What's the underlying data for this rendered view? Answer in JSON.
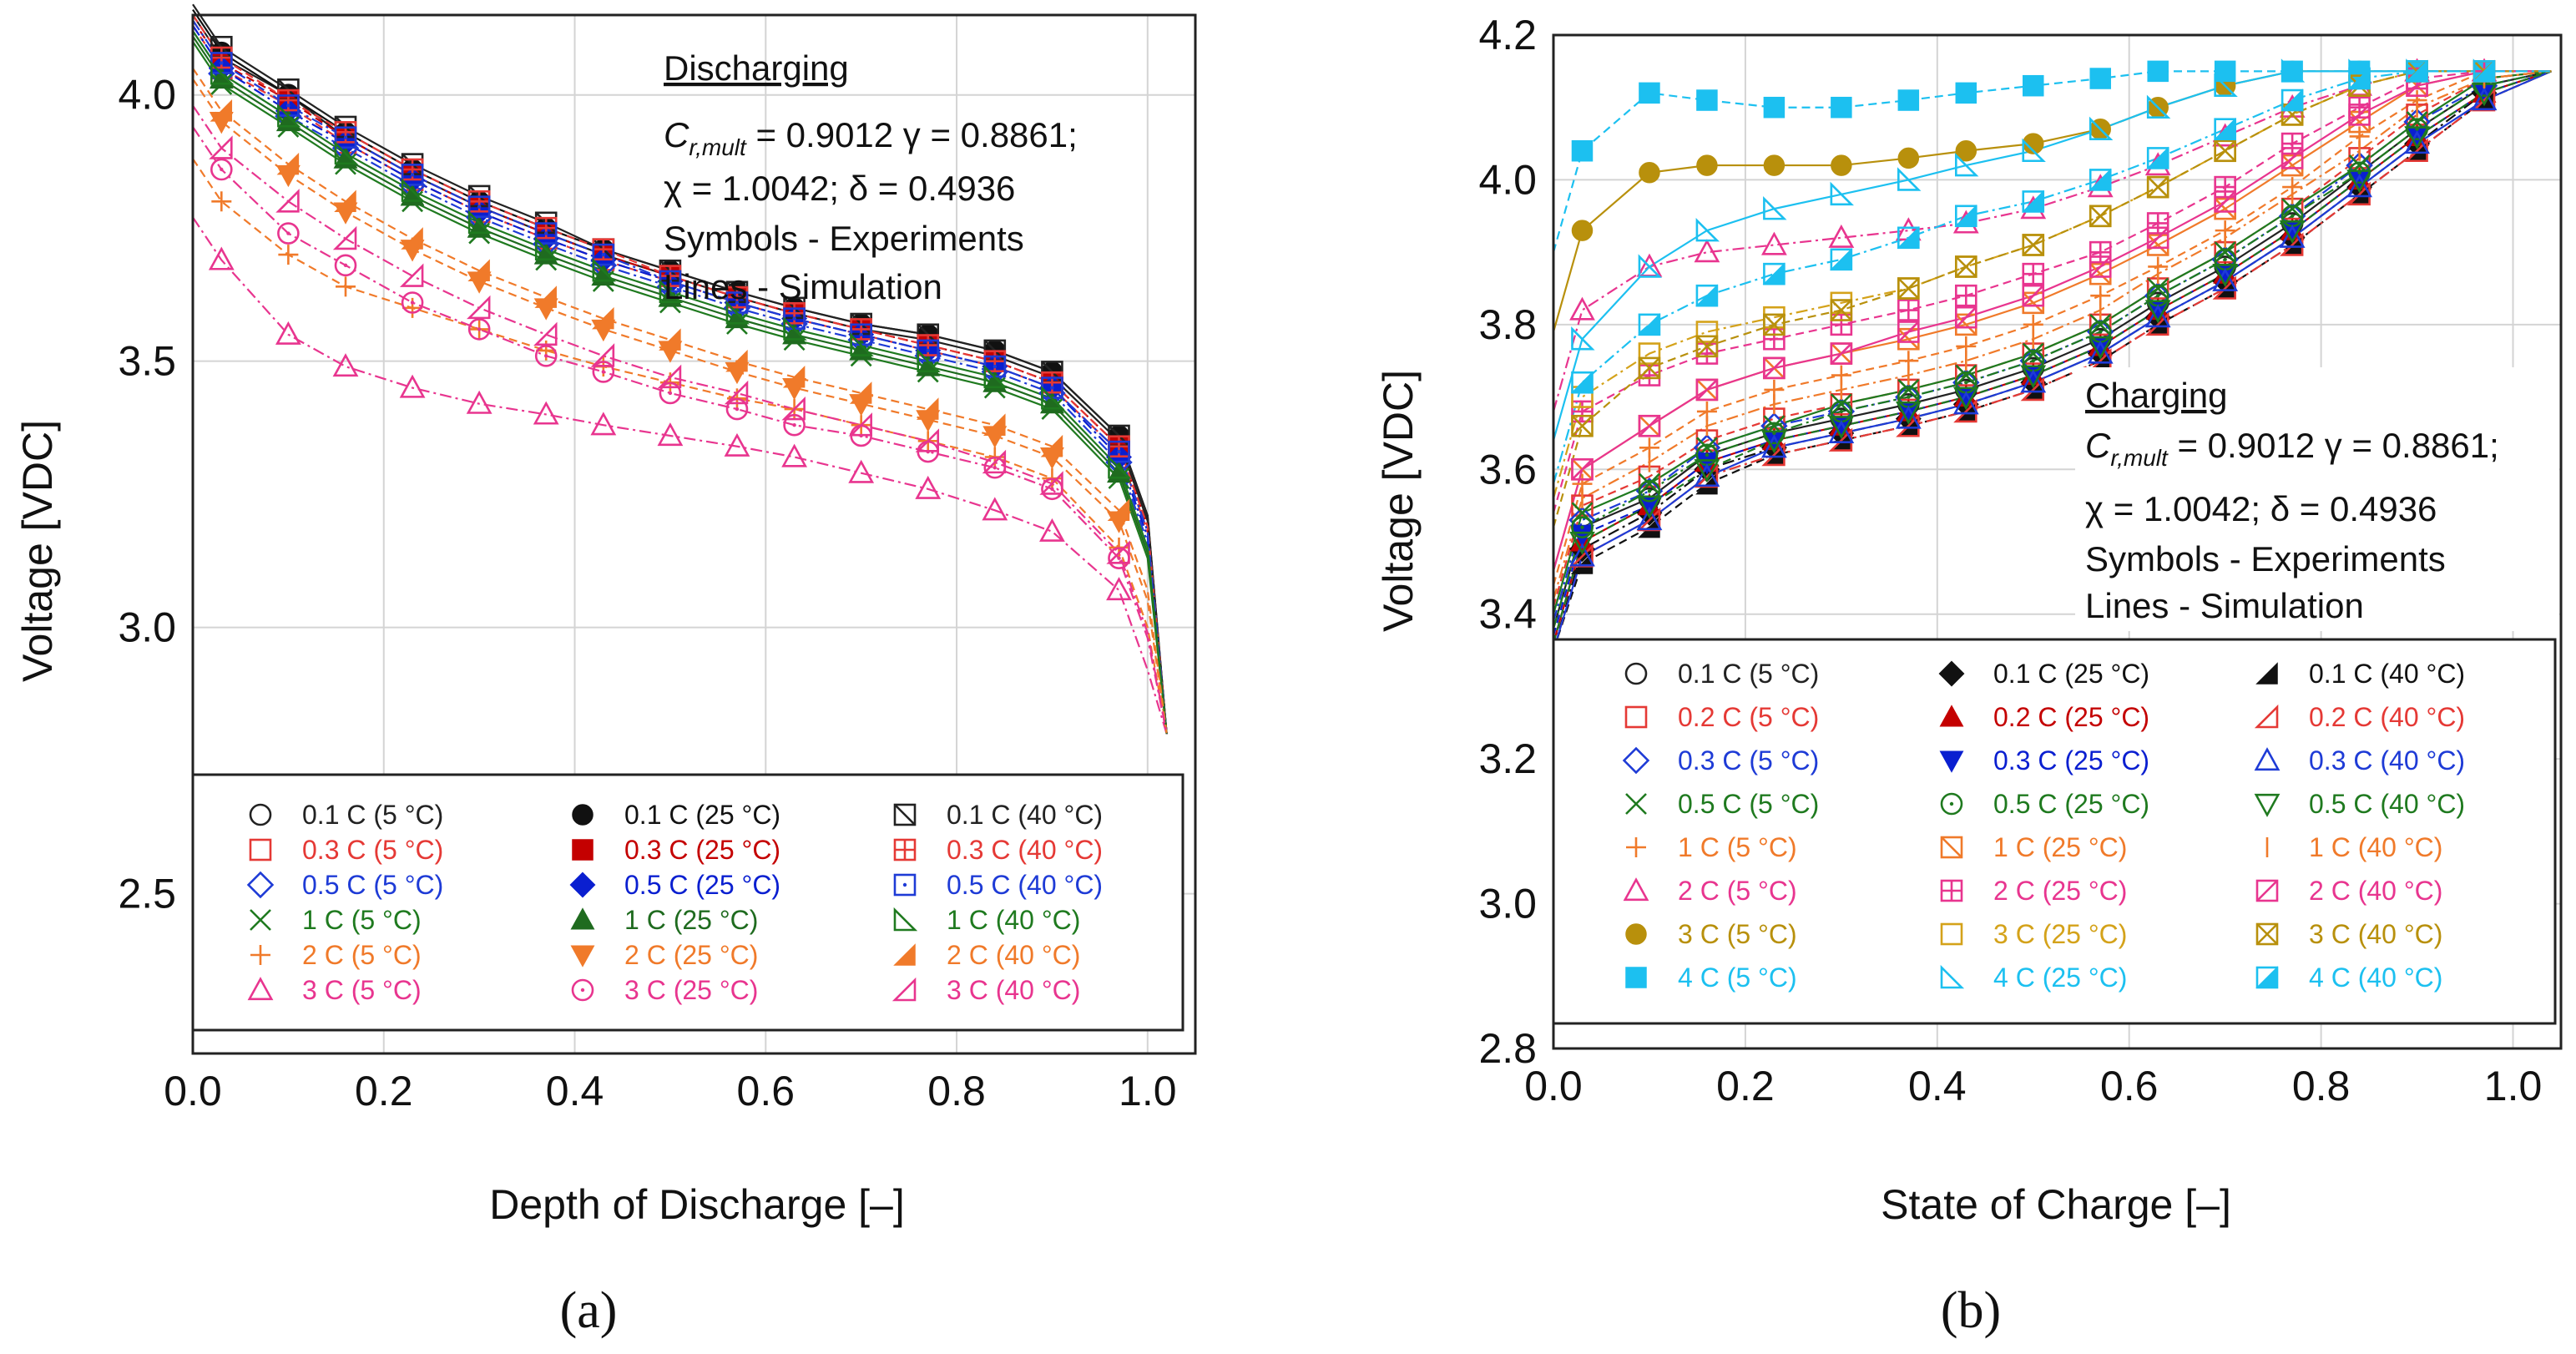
{
  "chart_data": [
    {
      "type": "scatter",
      "panel_label": "(a)",
      "xlabel": "Depth of Discharge [–]",
      "ylabel": "Voltage [VDC]",
      "xlim": [
        0,
        1.05
      ],
      "ylim": [
        2.2,
        4.15
      ],
      "xticks": [
        "0.0",
        "0.2",
        "0.4",
        "0.6",
        "0.8",
        "1.0"
      ],
      "yticks": [
        "2.5",
        "3.0",
        "3.5",
        "4.0"
      ],
      "grid": true,
      "annotation": {
        "title": "Discharging",
        "param_line1_sym": "C",
        "param_line1_sub": "r,mult",
        "param_line1_rest": " = 0.9012 γ = 0.8861;",
        "param_line2": "χ = 1.0042; δ = 0.4936",
        "line3": "Symbols - Experiments",
        "line4": "Lines - Simulation"
      },
      "x": [
        0.03,
        0.1,
        0.16,
        0.23,
        0.3,
        0.37,
        0.43,
        0.5,
        0.57,
        0.63,
        0.7,
        0.77,
        0.84,
        0.9,
        0.97
      ],
      "series": [
        {
          "name": "0.1 C (5 °C)",
          "color": "#222222",
          "marker": "circle-open",
          "values": [
            4.07,
            4.0,
            3.92,
            3.85,
            3.79,
            3.74,
            3.7,
            3.66,
            3.62,
            3.59,
            3.56,
            3.54,
            3.51,
            3.47,
            3.35
          ]
        },
        {
          "name": "0.3 C (5 °C)",
          "color": "#e53935",
          "marker": "square-open",
          "values": [
            4.05,
            3.98,
            3.91,
            3.84,
            3.78,
            3.73,
            3.69,
            3.65,
            3.61,
            3.58,
            3.55,
            3.52,
            3.49,
            3.45,
            3.33
          ]
        },
        {
          "name": "0.5 C (5 °C)",
          "color": "#1e3bd6",
          "marker": "diamond-open",
          "values": [
            4.04,
            3.96,
            3.9,
            3.83,
            3.77,
            3.72,
            3.68,
            3.64,
            3.6,
            3.57,
            3.54,
            3.51,
            3.48,
            3.44,
            3.31
          ]
        },
        {
          "name": "1 C (5 °C)",
          "color": "#1f7a1f",
          "marker": "x",
          "values": [
            4.02,
            3.94,
            3.87,
            3.8,
            3.74,
            3.69,
            3.65,
            3.61,
            3.57,
            3.54,
            3.51,
            3.48,
            3.45,
            3.41,
            3.28
          ]
        },
        {
          "name": "2 C (5 °C)",
          "color": "#f07a2a",
          "marker": "plus",
          "values": [
            3.8,
            3.7,
            3.64,
            3.6,
            3.56,
            3.52,
            3.49,
            3.46,
            3.43,
            3.41,
            3.38,
            3.35,
            3.32,
            3.28,
            3.15
          ]
        },
        {
          "name": "3 C (5 °C)",
          "color": "#e8358f",
          "marker": "triangle-open",
          "values": [
            3.69,
            3.55,
            3.49,
            3.45,
            3.42,
            3.4,
            3.38,
            3.36,
            3.34,
            3.32,
            3.29,
            3.26,
            3.22,
            3.18,
            3.07
          ]
        },
        {
          "name": "0.1 C (25 °C)",
          "color": "#111111",
          "marker": "circle-filled",
          "values": [
            4.08,
            4.0,
            3.93,
            3.86,
            3.8,
            3.75,
            3.71,
            3.67,
            3.63,
            3.6,
            3.57,
            3.55,
            3.52,
            3.48,
            3.36
          ]
        },
        {
          "name": "0.3 C (25 °C)",
          "color": "#c40000",
          "marker": "square-filled",
          "values": [
            4.06,
            3.99,
            3.92,
            3.85,
            3.79,
            3.74,
            3.7,
            3.66,
            3.62,
            3.59,
            3.56,
            3.53,
            3.5,
            3.46,
            3.34
          ]
        },
        {
          "name": "0.5 C (25 °C)",
          "color": "#0a1fd0",
          "marker": "diamond-filled",
          "values": [
            4.05,
            3.97,
            3.91,
            3.84,
            3.78,
            3.73,
            3.69,
            3.65,
            3.61,
            3.58,
            3.55,
            3.52,
            3.49,
            3.45,
            3.32
          ]
        },
        {
          "name": "1 C (25 °C)",
          "color": "#1f6b1f",
          "marker": "triangle-filled",
          "values": [
            4.03,
            3.95,
            3.88,
            3.81,
            3.75,
            3.7,
            3.66,
            3.62,
            3.58,
            3.55,
            3.52,
            3.49,
            3.46,
            3.42,
            3.29
          ]
        },
        {
          "name": "2 C (25 °C)",
          "color": "#f07a2a",
          "marker": "triangle-down-filled",
          "values": [
            3.95,
            3.85,
            3.78,
            3.71,
            3.65,
            3.6,
            3.56,
            3.52,
            3.48,
            3.45,
            3.42,
            3.39,
            3.36,
            3.32,
            3.2
          ]
        },
        {
          "name": "3 C (25 °C)",
          "color": "#e8358f",
          "marker": "circle-dot",
          "values": [
            3.86,
            3.74,
            3.68,
            3.61,
            3.56,
            3.51,
            3.48,
            3.44,
            3.41,
            3.38,
            3.36,
            3.33,
            3.3,
            3.26,
            3.13
          ]
        },
        {
          "name": "0.1 C (40 °C)",
          "color": "#222222",
          "marker": "square-diag",
          "values": [
            4.09,
            4.01,
            3.94,
            3.87,
            3.81,
            3.76,
            3.71,
            3.67,
            3.63,
            3.6,
            3.57,
            3.55,
            3.52,
            3.48,
            3.36
          ]
        },
        {
          "name": "0.3 C (40 °C)",
          "color": "#e53935",
          "marker": "square-cross",
          "values": [
            4.07,
            3.99,
            3.93,
            3.86,
            3.8,
            3.75,
            3.71,
            3.66,
            3.62,
            3.59,
            3.56,
            3.53,
            3.5,
            3.46,
            3.34
          ]
        },
        {
          "name": "0.5 C (40 °C)",
          "color": "#1e3bd6",
          "marker": "square-dot",
          "values": [
            4.06,
            3.98,
            3.92,
            3.85,
            3.79,
            3.74,
            3.7,
            3.65,
            3.61,
            3.58,
            3.55,
            3.52,
            3.49,
            3.45,
            3.33
          ]
        },
        {
          "name": "1 C (40 °C)",
          "color": "#1f7a1f",
          "marker": "rtri-open",
          "values": [
            4.04,
            3.96,
            3.89,
            3.82,
            3.76,
            3.71,
            3.67,
            3.63,
            3.59,
            3.56,
            3.53,
            3.5,
            3.47,
            3.43,
            3.3
          ]
        },
        {
          "name": "2 C (40 °C)",
          "color": "#f07a2a",
          "marker": "rtri-filled",
          "values": [
            3.97,
            3.87,
            3.8,
            3.73,
            3.67,
            3.62,
            3.58,
            3.54,
            3.5,
            3.47,
            3.44,
            3.41,
            3.38,
            3.34,
            3.22
          ]
        },
        {
          "name": "3 C (40 °C)",
          "color": "#e8358f",
          "marker": "ltri-open",
          "values": [
            3.9,
            3.8,
            3.73,
            3.66,
            3.6,
            3.55,
            3.51,
            3.47,
            3.44,
            3.41,
            3.38,
            3.35,
            3.31,
            3.27,
            3.14
          ]
        }
      ]
    },
    {
      "type": "scatter",
      "panel_label": "(b)",
      "xlabel": "State of Charge [–]",
      "ylabel": "Voltage [VDC]",
      "xlim": [
        0,
        1.05
      ],
      "ylim": [
        2.8,
        4.2
      ],
      "xticks": [
        "0.0",
        "0.2",
        "0.4",
        "0.6",
        "0.8",
        "1.0"
      ],
      "yticks": [
        "2.8",
        "3.0",
        "3.2",
        "3.4",
        "3.6",
        "3.8",
        "4.0",
        "4.2"
      ],
      "grid": true,
      "annotation": {
        "title": "Charging",
        "param_line1_sym": "C",
        "param_line1_sub": "r,mult",
        "param_line1_rest": " = 0.9012 γ = 0.8861;",
        "param_line2": "χ = 1.0042; δ = 0.4936",
        "line3": "Symbols - Experiments",
        "line4": "Lines - Simulation"
      },
      "x": [
        0.03,
        0.1,
        0.16,
        0.23,
        0.3,
        0.37,
        0.43,
        0.5,
        0.57,
        0.63,
        0.7,
        0.77,
        0.84,
        0.9,
        0.97
      ],
      "series": [
        {
          "name": "0.1 C (5 °C)",
          "color": "#222222",
          "marker": "circle-open",
          "values": [
            3.52,
            3.56,
            3.62,
            3.65,
            3.67,
            3.69,
            3.71,
            3.74,
            3.78,
            3.83,
            3.88,
            3.94,
            4.01,
            4.07,
            4.13
          ]
        },
        {
          "name": "0.2 C (5 °C)",
          "color": "#e53935",
          "marker": "square-open",
          "values": [
            3.55,
            3.59,
            3.64,
            3.67,
            3.69,
            3.71,
            3.73,
            3.76,
            3.8,
            3.85,
            3.9,
            3.96,
            4.03,
            4.09,
            4.14
          ]
        },
        {
          "name": "0.3 C (5 °C)",
          "color": "#1e3bd6",
          "marker": "diamond-open",
          "values": [
            3.53,
            3.57,
            3.63,
            3.66,
            3.68,
            3.7,
            3.72,
            3.75,
            3.79,
            3.84,
            3.89,
            3.95,
            4.02,
            4.08,
            4.13
          ]
        },
        {
          "name": "0.5 C (5 °C)",
          "color": "#1f7a1f",
          "marker": "x",
          "values": [
            3.54,
            3.58,
            3.63,
            3.66,
            3.69,
            3.71,
            3.73,
            3.76,
            3.8,
            3.85,
            3.9,
            3.96,
            4.02,
            4.08,
            4.14
          ]
        },
        {
          "name": "1 C (5 °C)",
          "color": "#f07a2a",
          "marker": "plus",
          "values": [
            3.58,
            3.63,
            3.68,
            3.71,
            3.73,
            3.75,
            3.77,
            3.8,
            3.84,
            3.88,
            3.93,
            3.99,
            4.06,
            4.11,
            4.15
          ]
        },
        {
          "name": "2 C (5 °C)",
          "color": "#e8358f",
          "marker": "triangle-open",
          "values": [
            3.82,
            3.88,
            3.9,
            3.91,
            3.92,
            3.93,
            3.94,
            3.96,
            3.99,
            4.02,
            4.06,
            4.1,
            4.13,
            4.15,
            4.15
          ]
        },
        {
          "name": "3 C (5 °C)",
          "color": "#b8900c",
          "marker": "circle-filled",
          "values": [
            3.93,
            4.01,
            4.02,
            4.02,
            4.02,
            4.03,
            4.04,
            4.05,
            4.07,
            4.1,
            4.13,
            4.15,
            4.15,
            4.15,
            4.15
          ]
        },
        {
          "name": "4 C (5 °C)",
          "color": "#1cc0f0",
          "marker": "square-filled",
          "values": [
            4.04,
            4.12,
            4.11,
            4.1,
            4.1,
            4.11,
            4.12,
            4.13,
            4.14,
            4.15,
            4.15,
            4.15,
            4.15,
            4.15,
            4.15
          ]
        },
        {
          "name": "0.1 C (25 °C)",
          "color": "#111111",
          "marker": "diamond-filled",
          "values": [
            3.49,
            3.54,
            3.6,
            3.63,
            3.65,
            3.67,
            3.69,
            3.72,
            3.76,
            3.81,
            3.86,
            3.92,
            3.99,
            4.05,
            4.12
          ]
        },
        {
          "name": "0.2 C (25 °C)",
          "color": "#c40000",
          "marker": "triangle-filled",
          "values": [
            3.5,
            3.55,
            3.61,
            3.64,
            3.66,
            3.68,
            3.7,
            3.73,
            3.77,
            3.82,
            3.87,
            3.93,
            4.0,
            4.06,
            4.12
          ]
        },
        {
          "name": "0.3 C (25 °C)",
          "color": "#0a1fd0",
          "marker": "triangle-down-filled",
          "values": [
            3.51,
            3.55,
            3.61,
            3.64,
            3.66,
            3.68,
            3.7,
            3.73,
            3.77,
            3.82,
            3.87,
            3.93,
            4.0,
            4.06,
            4.12
          ]
        },
        {
          "name": "0.5 C (25 °C)",
          "color": "#1f7a1f",
          "marker": "circle-dot",
          "values": [
            3.52,
            3.57,
            3.62,
            3.65,
            3.68,
            3.7,
            3.72,
            3.75,
            3.79,
            3.84,
            3.89,
            3.95,
            4.01,
            4.07,
            4.13
          ]
        },
        {
          "name": "1 C (25 °C)",
          "color": "#f07a2a",
          "marker": "square-diag",
          "values": [
            3.6,
            3.66,
            3.71,
            3.74,
            3.76,
            3.78,
            3.8,
            3.83,
            3.87,
            3.91,
            3.96,
            4.02,
            4.08,
            4.13,
            4.15
          ]
        },
        {
          "name": "2 C (25 °C)",
          "color": "#e8358f",
          "marker": "square-cross",
          "values": [
            3.68,
            3.73,
            3.76,
            3.78,
            3.8,
            3.82,
            3.84,
            3.87,
            3.9,
            3.94,
            3.99,
            4.05,
            4.1,
            4.14,
            4.15
          ]
        },
        {
          "name": "3 C (25 °C)",
          "color": "#d4a21a",
          "marker": "square-open",
          "values": [
            3.7,
            3.76,
            3.79,
            3.81,
            3.83,
            3.85,
            3.88,
            3.91,
            3.95,
            3.99,
            4.04,
            4.09,
            4.13,
            4.15,
            4.15
          ]
        },
        {
          "name": "4 C (25 °C)",
          "color": "#1cc0f0",
          "marker": "rtri-open",
          "values": [
            3.78,
            3.88,
            3.93,
            3.96,
            3.98,
            4.0,
            4.02,
            4.04,
            4.07,
            4.1,
            4.13,
            4.15,
            4.15,
            4.15,
            4.15
          ]
        },
        {
          "name": "0.1 C (40 °C)",
          "color": "#111111",
          "marker": "rtri-filled",
          "values": [
            3.47,
            3.52,
            3.58,
            3.62,
            3.64,
            3.66,
            3.68,
            3.71,
            3.75,
            3.8,
            3.85,
            3.91,
            3.98,
            4.04,
            4.11
          ]
        },
        {
          "name": "0.2 C (40 °C)",
          "color": "#e53935",
          "marker": "ltri-open",
          "values": [
            3.48,
            3.53,
            3.59,
            3.62,
            3.64,
            3.66,
            3.68,
            3.71,
            3.75,
            3.8,
            3.85,
            3.91,
            3.98,
            4.04,
            4.11
          ]
        },
        {
          "name": "0.3 C (40 °C)",
          "color": "#1e3bd6",
          "marker": "triangle-open",
          "values": [
            3.48,
            3.53,
            3.59,
            3.63,
            3.65,
            3.67,
            3.69,
            3.72,
            3.76,
            3.81,
            3.86,
            3.92,
            3.99,
            4.05,
            4.11
          ]
        },
        {
          "name": "0.5 C (40 °C)",
          "color": "#1f7a1f",
          "marker": "triangle-down-open",
          "values": [
            3.5,
            3.55,
            3.6,
            3.64,
            3.66,
            3.68,
            3.7,
            3.73,
            3.77,
            3.82,
            3.87,
            3.93,
            4.0,
            4.06,
            4.12
          ]
        },
        {
          "name": "1 C (40 °C)",
          "color": "#f07a2a",
          "marker": "vbar",
          "values": [
            3.56,
            3.61,
            3.66,
            3.69,
            3.71,
            3.73,
            3.75,
            3.78,
            3.82,
            3.87,
            3.92,
            3.98,
            4.04,
            4.1,
            4.14
          ]
        },
        {
          "name": "2 C (40 °C)",
          "color": "#e8358f",
          "marker": "square-slash",
          "values": [
            3.6,
            3.66,
            3.71,
            3.74,
            3.76,
            3.79,
            3.81,
            3.84,
            3.88,
            3.92,
            3.97,
            4.03,
            4.09,
            4.13,
            4.15
          ]
        },
        {
          "name": "3 C (40 °C)",
          "color": "#b8900c",
          "marker": "square-x",
          "values": [
            3.66,
            3.74,
            3.77,
            3.8,
            3.82,
            3.85,
            3.88,
            3.91,
            3.95,
            3.99,
            4.04,
            4.09,
            4.13,
            4.15,
            4.15
          ]
        },
        {
          "name": "4 C (40 °C)",
          "color": "#1cc0f0",
          "marker": "square-half",
          "values": [
            3.72,
            3.8,
            3.84,
            3.87,
            3.89,
            3.92,
            3.95,
            3.97,
            4.0,
            4.03,
            4.07,
            4.11,
            4.14,
            4.15,
            4.15
          ]
        }
      ]
    }
  ]
}
